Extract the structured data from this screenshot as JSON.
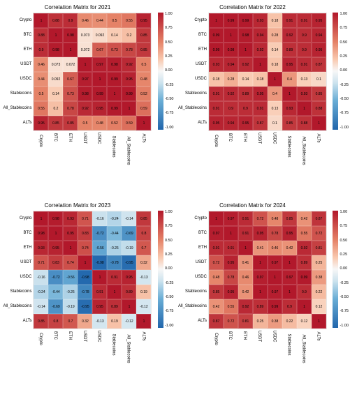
{
  "labels": [
    "Crypto",
    "BTC",
    "ETH",
    "USDT",
    "USDC",
    "Stablecoins",
    "All_Stablecoins",
    "ALTs"
  ],
  "colorbar": {
    "ticks": [
      "1.00",
      "0.75",
      "0.50",
      "0.25",
      "0.00",
      "-0.25",
      "-0.50",
      "-0.75",
      "-1.00"
    ],
    "stops": [
      {
        "p": 0,
        "c": "#b2182b"
      },
      {
        "p": 25,
        "c": "#e58267"
      },
      {
        "p": 40,
        "c": "#f9c9af"
      },
      {
        "p": 50,
        "c": "#f7f7f7"
      },
      {
        "p": 60,
        "c": "#cde3ee"
      },
      {
        "p": 75,
        "c": "#6aaed6"
      },
      {
        "p": 100,
        "c": "#2166ac"
      }
    ]
  },
  "panels": [
    {
      "title": "Correlation Matrix for 2021",
      "data": [
        [
          1,
          0.88,
          0.9,
          0.46,
          0.44,
          0.5,
          0.55,
          0.95
        ],
        [
          0.88,
          1,
          0.98,
          0.073,
          0.092,
          0.14,
          0.2,
          0.85
        ],
        [
          0.9,
          0.98,
          1,
          0.072,
          0.67,
          0.73,
          0.78,
          0.85
        ],
        [
          0.46,
          0.073,
          0.072,
          1,
          0.97,
          0.98,
          0.92,
          0.5
        ],
        [
          0.44,
          0.092,
          0.67,
          0.97,
          1,
          0.99,
          0.95,
          0.48
        ],
        [
          0.5,
          0.14,
          0.73,
          0.98,
          0.99,
          1,
          0.99,
          0.52
        ],
        [
          0.55,
          0.2,
          0.78,
          0.92,
          0.95,
          0.99,
          1,
          0.59
        ],
        [
          0.95,
          0.85,
          0.85,
          0.5,
          0.48,
          0.52,
          0.59,
          1
        ]
      ]
    },
    {
      "title": "Correlation Matrix for 2022",
      "data": [
        [
          1,
          0.99,
          0.99,
          0.93,
          0.18,
          0.91,
          0.91,
          0.95
        ],
        [
          0.99,
          1,
          0.98,
          0.94,
          0.28,
          0.92,
          0.9,
          0.94
        ],
        [
          0.99,
          0.98,
          1,
          0.92,
          0.14,
          0.89,
          0.9,
          0.95
        ],
        [
          0.93,
          0.94,
          0.92,
          1,
          0.18,
          0.95,
          0.91,
          0.87
        ],
        [
          0.18,
          0.28,
          0.14,
          0.18,
          1,
          0.4,
          0.13,
          0.1
        ],
        [
          0.91,
          0.92,
          0.89,
          0.95,
          0.4,
          1,
          0.93,
          0.85
        ],
        [
          0.91,
          0.9,
          0.9,
          0.91,
          0.13,
          0.93,
          1,
          0.88
        ],
        [
          0.95,
          0.94,
          0.95,
          0.87,
          0.1,
          0.85,
          0.88,
          1
        ]
      ]
    },
    {
      "title": "Correlation Matrix for 2023",
      "data": [
        [
          1,
          0.98,
          0.93,
          0.71,
          -0.16,
          -0.24,
          -0.14,
          0.85
        ],
        [
          0.98,
          1,
          0.95,
          0.83,
          -0.72,
          -0.44,
          -0.69,
          0.8
        ],
        [
          0.93,
          0.95,
          1,
          0.74,
          -0.56,
          -0.26,
          -0.19,
          0.7
        ],
        [
          0.71,
          0.83,
          0.74,
          1,
          -0.98,
          -0.78,
          -0.95,
          0.32
        ],
        [
          -0.16,
          -0.72,
          -0.56,
          -0.98,
          1,
          0.91,
          0.95,
          -0.13
        ],
        [
          -0.24,
          -0.44,
          -0.26,
          -0.78,
          0.91,
          1,
          0.89,
          0.19
        ],
        [
          -0.14,
          -0.69,
          -0.19,
          -0.95,
          0.95,
          0.89,
          1,
          -0.12
        ],
        [
          0.85,
          0.8,
          0.7,
          0.32,
          -0.13,
          0.19,
          -0.12,
          1
        ]
      ]
    },
    {
      "title": "Correlation Matrix for 2024",
      "data": [
        [
          1,
          0.97,
          0.91,
          0.72,
          0.48,
          0.85,
          0.42,
          0.87
        ],
        [
          0.97,
          1,
          0.91,
          0.95,
          0.78,
          0.95,
          0.55,
          0.72
        ],
        [
          0.91,
          0.91,
          1,
          0.41,
          0.46,
          0.42,
          0.92,
          0.81
        ],
        [
          0.72,
          0.95,
          0.41,
          1,
          0.97,
          1,
          0.89,
          0.25
        ],
        [
          0.48,
          0.78,
          0.46,
          0.97,
          1,
          0.97,
          0.99,
          0.38
        ],
        [
          0.85,
          0.95,
          0.42,
          1,
          0.97,
          1,
          0.9,
          0.22
        ],
        [
          0.42,
          0.55,
          0.92,
          0.89,
          0.99,
          0.9,
          1,
          0.12
        ],
        [
          0.87,
          0.72,
          0.81,
          0.25,
          0.38,
          0.22,
          0.12,
          1
        ]
      ]
    }
  ],
  "cell_size": 21,
  "title_fontsize": 8,
  "label_fontsize": 6,
  "cell_fontsize": 5
}
